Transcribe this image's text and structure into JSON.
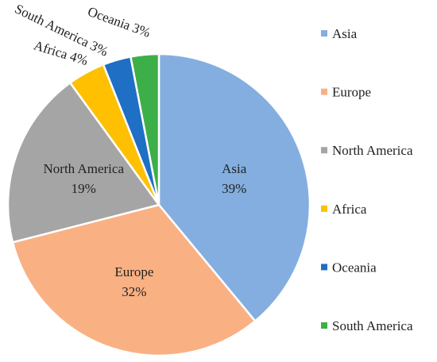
{
  "chart_data": {
    "type": "pie",
    "categories": [
      "Asia",
      "Europe",
      "North America",
      "Africa",
      "Oceania",
      "South America"
    ],
    "values": [
      39,
      32,
      19,
      4,
      3,
      3
    ],
    "value_labels": [
      "39%",
      "32%",
      "19%",
      "4%",
      "3%",
      "3%"
    ],
    "colors": [
      "#84aee0",
      "#f9b183",
      "#a5a5a5",
      "#fec000",
      "#1f6fc5",
      "#3daf48"
    ],
    "legend": "right"
  }
}
